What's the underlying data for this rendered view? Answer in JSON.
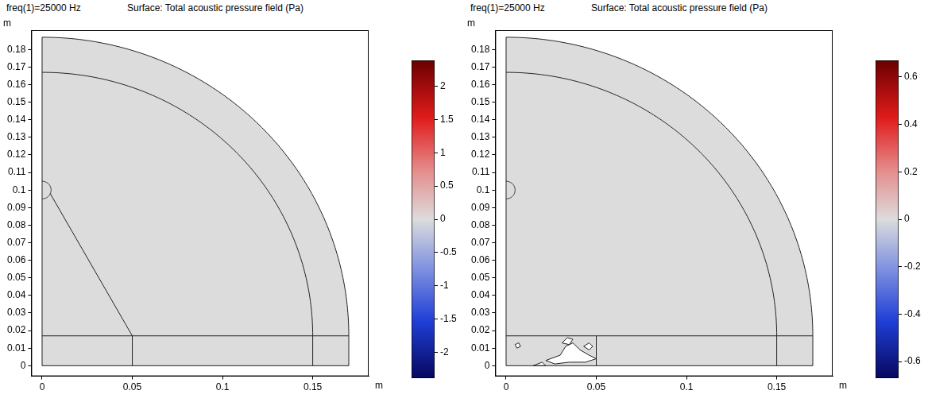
{
  "chart_data": [
    {
      "type": "surface",
      "subtitle": "freq(1)=25000 Hz",
      "title": "Surface: Total acoustic pressure field (Pa)",
      "xlabel": "m",
      "ylabel": "m",
      "xlim": [
        -0.006,
        0.181
      ],
      "xticks": [
        0,
        0.05,
        0.1,
        0.15
      ],
      "ylim": [
        -0.006,
        0.191
      ],
      "yticks": [
        0,
        0.01,
        0.02,
        0.03,
        0.04,
        0.05,
        0.06,
        0.07,
        0.08,
        0.09,
        0.1,
        0.11,
        0.12,
        0.13,
        0.14,
        0.15,
        0.16,
        0.17,
        0.18
      ],
      "grid": false,
      "outlines": [
        {
          "kind": "arc",
          "center": [
            0,
            0.017
          ],
          "radius": 0.17,
          "angles": [
            0,
            90
          ]
        },
        {
          "kind": "arc",
          "center": [
            0,
            0.017
          ],
          "radius": 0.15,
          "angles": [
            0,
            90
          ]
        },
        {
          "kind": "arc",
          "center": [
            0,
            0.1
          ],
          "radius": 0.005,
          "angles": [
            -90,
            90
          ]
        },
        {
          "kind": "line",
          "points": [
            [
              0,
              0
            ],
            [
              0,
              0.187
            ]
          ]
        },
        {
          "kind": "line",
          "points": [
            [
              0,
              0
            ],
            [
              0.17,
              0
            ]
          ]
        },
        {
          "kind": "line",
          "points": [
            [
              0,
              0.017
            ],
            [
              0.17,
              0.017
            ]
          ]
        },
        {
          "kind": "line",
          "points": [
            [
              0.05,
              0
            ],
            [
              0.05,
              0.017
            ]
          ]
        },
        {
          "kind": "line",
          "points": [
            [
              0.15,
              0
            ],
            [
              0.15,
              0.017
            ]
          ]
        },
        {
          "kind": "line",
          "points": [
            [
              0.17,
              0
            ],
            [
              0.17,
              0.017
            ]
          ]
        },
        {
          "kind": "line",
          "points": [
            [
              0.05,
              0.017
            ],
            [
              0.0045,
              0.098
            ]
          ]
        }
      ],
      "colorbar": {
        "range": [
          -2.39,
          2.39
        ],
        "ticks": [
          -2,
          -1.5,
          -1,
          -0.5,
          0,
          0.5,
          1,
          1.5,
          2
        ]
      }
    },
    {
      "type": "surface",
      "subtitle": "freq(1)=25000 Hz",
      "title": "Surface: Total acoustic pressure field (Pa)",
      "xlabel": "m",
      "ylabel": "m",
      "xlim": [
        -0.006,
        0.181
      ],
      "xticks": [
        0,
        0.05,
        0.1,
        0.15
      ],
      "ylim": [
        -0.006,
        0.191
      ],
      "yticks": [
        0,
        0.01,
        0.02,
        0.03,
        0.04,
        0.05,
        0.06,
        0.07,
        0.08,
        0.09,
        0.1,
        0.11,
        0.12,
        0.13,
        0.14,
        0.15,
        0.16,
        0.17,
        0.18
      ],
      "grid": false,
      "outlines": [
        {
          "kind": "arc",
          "center": [
            0,
            0.017
          ],
          "radius": 0.17,
          "angles": [
            0,
            90
          ]
        },
        {
          "kind": "arc",
          "center": [
            0,
            0.017
          ],
          "radius": 0.15,
          "angles": [
            0,
            90
          ]
        },
        {
          "kind": "arc",
          "center": [
            0,
            0.1
          ],
          "radius": 0.005,
          "angles": [
            -90,
            90
          ]
        },
        {
          "kind": "line",
          "points": [
            [
              0,
              0
            ],
            [
              0,
              0.187
            ]
          ]
        },
        {
          "kind": "line",
          "points": [
            [
              0,
              0
            ],
            [
              0.17,
              0
            ]
          ]
        },
        {
          "kind": "line",
          "points": [
            [
              0,
              0.017
            ],
            [
              0.17,
              0.017
            ]
          ]
        },
        {
          "kind": "line",
          "points": [
            [
              0.05,
              0
            ],
            [
              0.05,
              0.017
            ]
          ]
        },
        {
          "kind": "line",
          "points": [
            [
              0.15,
              0
            ],
            [
              0.15,
              0.017
            ]
          ]
        },
        {
          "kind": "line",
          "points": [
            [
              0.17,
              0
            ],
            [
              0.17,
              0.017
            ]
          ]
        }
      ],
      "holes": [
        [
          [
            0.022,
            0.003
          ],
          [
            0.03,
            0.006
          ],
          [
            0.033,
            0.011
          ],
          [
            0.037,
            0.013
          ],
          [
            0.041,
            0.009
          ],
          [
            0.046,
            0.006
          ],
          [
            0.05,
            0.004
          ],
          [
            0.044,
            0.002
          ],
          [
            0.035,
            0.002
          ],
          [
            0.027,
            0.001
          ]
        ],
        [
          [
            0.031,
            0.013
          ],
          [
            0.034,
            0.016
          ],
          [
            0.037,
            0.015
          ],
          [
            0.035,
            0.012
          ]
        ],
        [
          [
            0.005,
            0.012
          ],
          [
            0.007,
            0.013
          ],
          [
            0.008,
            0.011
          ],
          [
            0.006,
            0.01
          ]
        ],
        [
          [
            0.043,
            0.011
          ],
          [
            0.046,
            0.013
          ],
          [
            0.048,
            0.011
          ],
          [
            0.046,
            0.009
          ]
        ],
        [
          [
            0.015,
            0
          ],
          [
            0.02,
            0.002
          ],
          [
            0.022,
            0
          ]
        ]
      ],
      "colorbar": {
        "range": [
          -0.67,
          0.67
        ],
        "ticks": [
          -0.6,
          -0.4,
          -0.2,
          0,
          0.2,
          0.4,
          0.6
        ]
      }
    }
  ]
}
